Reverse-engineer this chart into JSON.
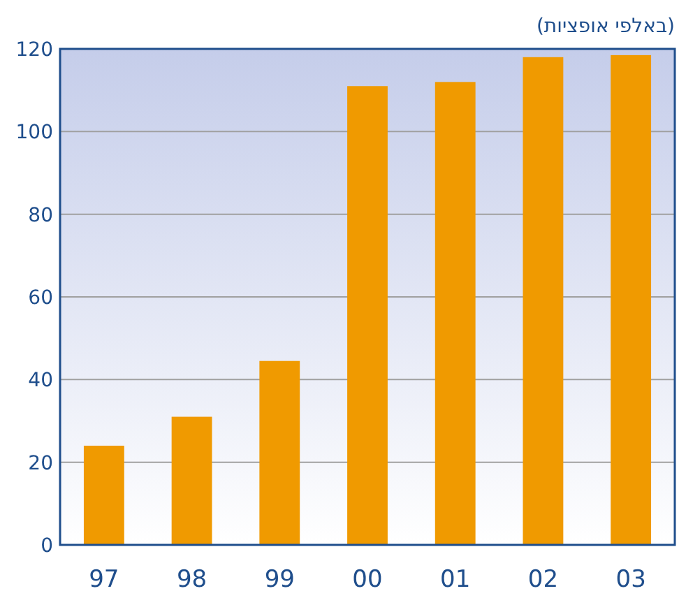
{
  "chart_data": {
    "type": "bar",
    "ylabel": "(באלפי אופציות)",
    "categories": [
      "97",
      "98",
      "99",
      "00",
      "01",
      "02",
      "03"
    ],
    "values": [
      24,
      31,
      44.5,
      111,
      112,
      118,
      118.5
    ],
    "color": "#f09a00",
    "ylim": [
      0,
      120
    ],
    "yticks": [
      0,
      20,
      40,
      60,
      80,
      100,
      120
    ],
    "grid": "y"
  }
}
